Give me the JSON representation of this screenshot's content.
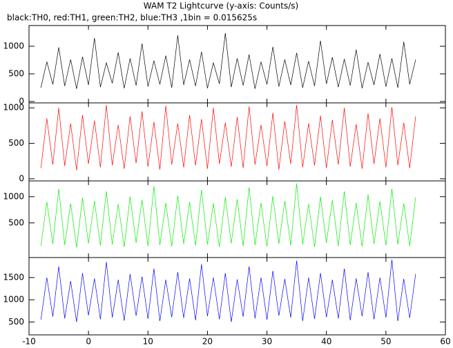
{
  "chart_data": [
    {
      "type": "line",
      "title": "WAM T2 Lightcurve (y-axis: Counts/s)",
      "subtitle": "black:TH0, red:TH1, green:TH2, blue:TH3 ,1bin = 0.015625s",
      "x": [
        -8,
        -7,
        -6,
        -5,
        -4,
        -3,
        -2,
        -1,
        0,
        1,
        2,
        3,
        4,
        5,
        6,
        7,
        8,
        9,
        10,
        11,
        12,
        13,
        14,
        15,
        16,
        17,
        18,
        19,
        20,
        21,
        22,
        23,
        24,
        25,
        26,
        27,
        28,
        29,
        30,
        31,
        32,
        33,
        34,
        35,
        36,
        37,
        38,
        39,
        40,
        41,
        42,
        43,
        44,
        45,
        46,
        47,
        48,
        49,
        50,
        51,
        52,
        53,
        54,
        55
      ],
      "series": [
        {
          "name": "TH0",
          "color": "#000000",
          "values": [
            250,
            720,
            310,
            980,
            280,
            760,
            230,
            810,
            300,
            1150,
            260,
            700,
            330,
            890,
            240,
            780,
            290,
            1050,
            270,
            740,
            310,
            830,
            250,
            1200,
            300,
            760,
            280,
            900,
            240,
            700,
            320,
            1240,
            260,
            780,
            290,
            850,
            230,
            720,
            310,
            990,
            270,
            760,
            300,
            880,
            250,
            730,
            280,
            1100,
            320,
            800,
            260,
            770,
            290,
            940,
            240,
            710,
            300,
            860,
            270,
            780,
            250,
            1080,
            310,
            760
          ]
        }
      ],
      "xlim": [
        -10,
        60
      ],
      "ylim": [
        -25,
        1375
      ],
      "yticks": [
        0,
        500,
        1000
      ]
    },
    {
      "type": "line",
      "x": [
        -8,
        -7,
        -6,
        -5,
        -4,
        -3,
        -2,
        -1,
        0,
        1,
        2,
        3,
        4,
        5,
        6,
        7,
        8,
        9,
        10,
        11,
        12,
        13,
        14,
        15,
        16,
        17,
        18,
        19,
        20,
        21,
        22,
        23,
        24,
        25,
        26,
        27,
        28,
        29,
        30,
        31,
        32,
        33,
        34,
        35,
        36,
        37,
        38,
        39,
        40,
        41,
        42,
        43,
        44,
        45,
        46,
        47,
        48,
        49,
        50,
        51,
        52,
        53,
        54,
        55
      ],
      "series": [
        {
          "name": "TH1",
          "color": "#ff0000",
          "values": [
            150,
            850,
            200,
            1000,
            180,
            780,
            120,
            900,
            210,
            820,
            160,
            1040,
            190,
            760,
            140,
            880,
            220,
            950,
            170,
            800,
            130,
            1030,
            200,
            780,
            160,
            900,
            190,
            840,
            140,
            1000,
            210,
            790,
            170,
            870,
            150,
            1020,
            200,
            760,
            180,
            930,
            130,
            810,
            210,
            1040,
            160,
            780,
            190,
            890,
            150,
            830,
            200,
            1000,
            170,
            770,
            140,
            920,
            210,
            850,
            160,
            1010,
            190,
            790,
            150,
            880
          ]
        }
      ],
      "xlim": [
        -10,
        60
      ],
      "ylim": [
        -30,
        1070
      ],
      "yticks": [
        0,
        500,
        1000
      ]
    },
    {
      "type": "line",
      "x": [
        -8,
        -7,
        -6,
        -5,
        -4,
        -3,
        -2,
        -1,
        0,
        1,
        2,
        3,
        4,
        5,
        6,
        7,
        8,
        9,
        10,
        11,
        12,
        13,
        14,
        15,
        16,
        17,
        18,
        19,
        20,
        21,
        22,
        23,
        24,
        25,
        26,
        27,
        28,
        29,
        30,
        31,
        32,
        33,
        34,
        35,
        36,
        37,
        38,
        39,
        40,
        41,
        42,
        43,
        44,
        45,
        46,
        47,
        48,
        49,
        50,
        51,
        52,
        53,
        54,
        55
      ],
      "series": [
        {
          "name": "TH2",
          "color": "#00ee00",
          "values": [
            60,
            900,
            100,
            1150,
            80,
            870,
            30,
            980,
            110,
            920,
            70,
            1100,
            90,
            860,
            40,
            1000,
            120,
            940,
            60,
            1200,
            80,
            880,
            50,
            1020,
            100,
            900,
            70,
            1130,
            90,
            870,
            40,
            990,
            110,
            950,
            60,
            1180,
            80,
            880,
            50,
            1010,
            100,
            920,
            70,
            1250,
            90,
            860,
            40,
            1000,
            120,
            930,
            60,
            1100,
            80,
            880,
            50,
            1040,
            100,
            910,
            70,
            1150,
            90,
            870,
            60,
            990
          ]
        }
      ],
      "xlim": [
        -10,
        60
      ],
      "ylim": [
        -160,
        1300
      ],
      "yticks": [
        500,
        1000
      ]
    },
    {
      "type": "line",
      "x": [
        -8,
        -7,
        -6,
        -5,
        -4,
        -3,
        -2,
        -1,
        0,
        1,
        2,
        3,
        4,
        5,
        6,
        7,
        8,
        9,
        10,
        11,
        12,
        13,
        14,
        15,
        16,
        17,
        18,
        19,
        20,
        21,
        22,
        23,
        24,
        25,
        26,
        27,
        28,
        29,
        30,
        31,
        32,
        33,
        34,
        35,
        36,
        37,
        38,
        39,
        40,
        41,
        42,
        43,
        44,
        45,
        46,
        47,
        48,
        49,
        50,
        51,
        52,
        53,
        54,
        55
      ],
      "series": [
        {
          "name": "TH3",
          "color": "#0000ff",
          "values": [
            550,
            1500,
            620,
            1750,
            580,
            1420,
            500,
            1600,
            650,
            1480,
            560,
            1850,
            600,
            1450,
            530,
            1580,
            640,
            1520,
            570,
            1700,
            520,
            1450,
            610,
            1620,
            590,
            1480,
            540,
            1800,
            630,
            1500,
            560,
            1600,
            500,
            1460,
            620,
            1750,
            580,
            1500,
            550,
            1650,
            640,
            1470,
            600,
            1880,
            520,
            1500,
            570,
            1600,
            610,
            1450,
            580,
            1700,
            540,
            1480,
            630,
            1620,
            560,
            1500,
            600,
            1900,
            520,
            1470,
            590,
            1580
          ]
        }
      ],
      "xlim": [
        -10,
        60
      ],
      "ylim": [
        210,
        1950
      ],
      "yticks": [
        500,
        1000,
        1500
      ],
      "xticks": [
        -10,
        0,
        10,
        20,
        30,
        40,
        50,
        60
      ]
    }
  ]
}
